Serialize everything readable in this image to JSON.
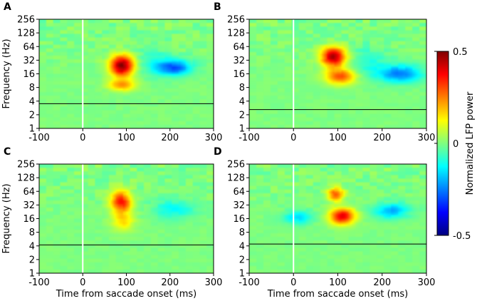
{
  "figure": {
    "colorbar": {
      "label": "Normalized LFP power",
      "min": -0.5,
      "max": 0.5,
      "ticks": [
        {
          "value": 0.5,
          "label": "0.5"
        },
        {
          "value": 0,
          "label": "0"
        },
        {
          "value": -0.5,
          "label": "-0.5"
        }
      ],
      "colormap": [
        "#00007f",
        "#0000ff",
        "#007fff",
        "#00ffff",
        "#7fff7f",
        "#ffff00",
        "#ff7f00",
        "#ff0000",
        "#7f0000"
      ]
    },
    "background_value": 0.0
  },
  "chart_data": [
    {
      "panel": "A",
      "type": "heatmap",
      "xlabel": "",
      "ylabel": "Frequency (Hz)",
      "xlim": [
        -100,
        300
      ],
      "ylim": [
        1,
        256
      ],
      "yscale": "log2",
      "xticks": [
        "-100",
        "0",
        "100",
        "200",
        "300"
      ],
      "yticks": [
        "256",
        "128",
        "64",
        "32",
        "16",
        "8",
        "4",
        "2",
        "1"
      ],
      "vline_x": 0,
      "hline_y": 3.5,
      "blobs": [
        {
          "x": 90,
          "y": 24,
          "sx": 20,
          "sy": 0.55,
          "value": 0.5
        },
        {
          "x": 90,
          "y": 9,
          "sx": 22,
          "sy": 0.3,
          "value": 0.22
        },
        {
          "x": 210,
          "y": 22,
          "sx": 28,
          "sy": 0.4,
          "value": -0.28
        },
        {
          "x": 160,
          "y": 30,
          "sx": 30,
          "sy": 0.8,
          "value": -0.08
        }
      ]
    },
    {
      "panel": "B",
      "type": "heatmap",
      "xlabel": "",
      "ylabel": "",
      "xlim": [
        -100,
        300
      ],
      "ylim": [
        1,
        256
      ],
      "yscale": "log2",
      "xticks": [
        "-100",
        "0",
        "100",
        "200",
        "300"
      ],
      "yticks": [
        "256",
        "128",
        "64",
        "32",
        "16",
        "8",
        "4",
        "2",
        "1"
      ],
      "vline_x": 0,
      "hline_y": 2.6,
      "blobs": [
        {
          "x": 90,
          "y": 38,
          "sx": 20,
          "sy": 0.5,
          "value": 0.45
        },
        {
          "x": 105,
          "y": 14,
          "sx": 24,
          "sy": 0.4,
          "value": 0.3
        },
        {
          "x": 240,
          "y": 16,
          "sx": 35,
          "sy": 0.45,
          "value": -0.25
        },
        {
          "x": 170,
          "y": 30,
          "sx": 30,
          "sy": 0.8,
          "value": -0.08
        }
      ]
    },
    {
      "panel": "C",
      "type": "heatmap",
      "xlabel": "Time from saccade onset (ms)",
      "ylabel": "Frequency (Hz)",
      "xlim": [
        -100,
        300
      ],
      "ylim": [
        1,
        256
      ],
      "yscale": "log2",
      "xticks": [
        "-100",
        "0",
        "100",
        "200",
        "300"
      ],
      "yticks": [
        "256",
        "128",
        "64",
        "32",
        "16",
        "8",
        "4",
        "2",
        "1"
      ],
      "vline_x": 0,
      "hline_y": 4.2,
      "blobs": [
        {
          "x": 88,
          "y": 38,
          "sx": 17,
          "sy": 0.55,
          "value": 0.36
        },
        {
          "x": 92,
          "y": 14,
          "sx": 18,
          "sy": 0.5,
          "value": 0.16
        },
        {
          "x": 210,
          "y": 26,
          "sx": 35,
          "sy": 0.5,
          "value": -0.12
        }
      ]
    },
    {
      "panel": "D",
      "type": "heatmap",
      "xlabel": "Time from saccade onset (ms)",
      "ylabel": "",
      "xlim": [
        -100,
        300
      ],
      "ylim": [
        1,
        256
      ],
      "yscale": "log2",
      "xticks": [
        "-100",
        "0",
        "100",
        "200",
        "300"
      ],
      "yticks": [
        "256",
        "128",
        "64",
        "32",
        "16",
        "8",
        "4",
        "2",
        "1"
      ],
      "vline_x": 0,
      "hline_y": 4.4,
      "blobs": [
        {
          "x": 95,
          "y": 55,
          "sx": 13,
          "sy": 0.35,
          "value": 0.3
        },
        {
          "x": 110,
          "y": 18,
          "sx": 20,
          "sy": 0.42,
          "value": 0.4
        },
        {
          "x": 10,
          "y": 17,
          "sx": 22,
          "sy": 0.35,
          "value": -0.16
        },
        {
          "x": 220,
          "y": 24,
          "sx": 28,
          "sy": 0.4,
          "value": -0.2
        }
      ]
    }
  ]
}
